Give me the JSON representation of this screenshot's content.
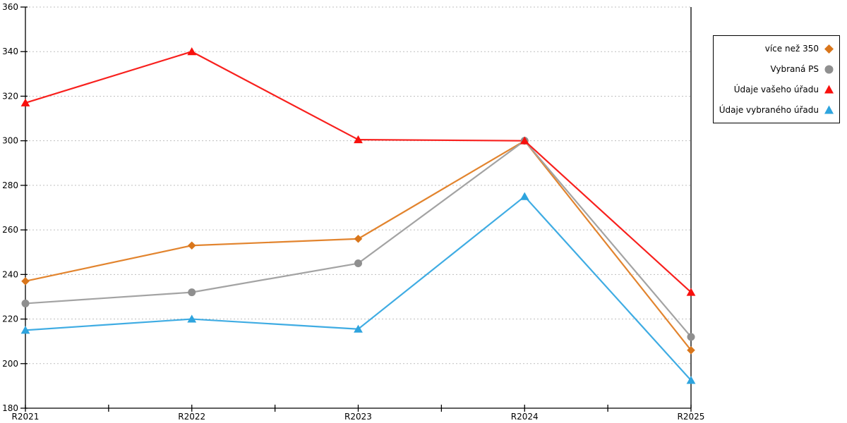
{
  "chart_data": {
    "type": "line",
    "title": "",
    "xlabel": "",
    "ylabel": "",
    "categories": [
      "R2021",
      "R2022",
      "R2023",
      "R2024",
      "R2025"
    ],
    "series": [
      {
        "name": "více než 350",
        "marker": "diamond",
        "color": "#D9761B",
        "line_color": "#E2842E",
        "values": [
          237,
          253,
          256,
          300,
          206
        ]
      },
      {
        "name": "Vybraná PS",
        "marker": "circle",
        "color": "#8F8F8F",
        "line_color": "#A3A3A3",
        "values": [
          227,
          232,
          245,
          300,
          212
        ]
      },
      {
        "name": "Údaje vašeho úřadu",
        "marker": "triangle",
        "color": "#F8100D",
        "line_color": "#F8201D",
        "values": [
          317,
          340,
          300.5,
          300,
          232
        ]
      },
      {
        "name": "Údaje vybraného úřadu",
        "marker": "triangle",
        "color": "#2EA4DE",
        "line_color": "#3FACE3",
        "values": [
          215,
          220,
          215.5,
          275,
          192.5
        ]
      }
    ],
    "ylim": [
      180,
      360
    ],
    "ytick_step": 20,
    "y_tick_labels": [
      "180",
      "200",
      "220",
      "240",
      "260",
      "280",
      "300",
      "320",
      "340",
      "360"
    ],
    "grid": "horizontal-dashed",
    "grid_color": "#BFBFBF",
    "axis_color": "#000000",
    "legend_position": "right"
  }
}
